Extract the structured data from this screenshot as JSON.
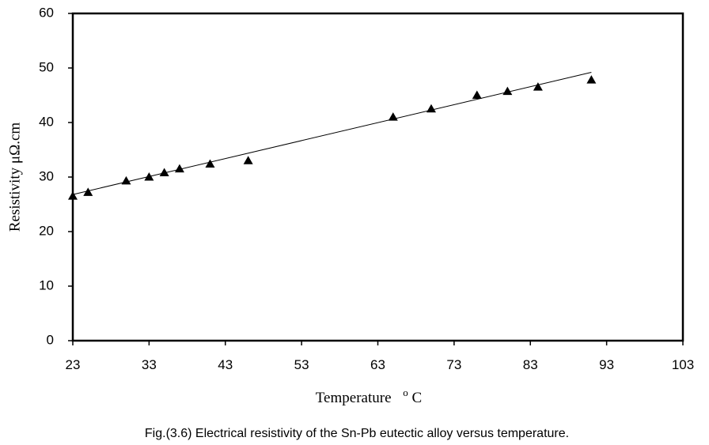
{
  "chart_data": {
    "type": "scatter",
    "title": "",
    "xlabel": "Temperature",
    "xlabel_unit_sup": "o",
    "xlabel_unit": "C",
    "ylabel": "Resistivity μΩ.cm",
    "xlim": [
      23,
      103
    ],
    "ylim": [
      0,
      60
    ],
    "xticks": [
      23,
      33,
      43,
      53,
      63,
      73,
      83,
      93,
      103
    ],
    "yticks": [
      0,
      10,
      20,
      30,
      40,
      50,
      60
    ],
    "grid": false,
    "marker": "triangle",
    "series": [
      {
        "name": "Resistivity",
        "x": [
          23,
          25,
          30,
          33,
          35,
          37,
          41,
          46,
          65,
          70,
          76,
          80,
          84,
          91
        ],
        "y": [
          26.5,
          27.2,
          29.3,
          30.0,
          30.8,
          31.5,
          32.4,
          33.0,
          41.0,
          42.5,
          45.0,
          45.7,
          46.5,
          47.8
        ]
      }
    ],
    "trendline": {
      "type": "linear",
      "x": [
        23,
        91
      ],
      "y": [
        26.8,
        49.2
      ]
    }
  },
  "caption": "Fig.(3.6) Electrical resistivity of the Sn-Pb eutectic alloy versus temperature.",
  "colors": {
    "marker": "#000000",
    "line": "#000000",
    "frame": "#000000"
  }
}
